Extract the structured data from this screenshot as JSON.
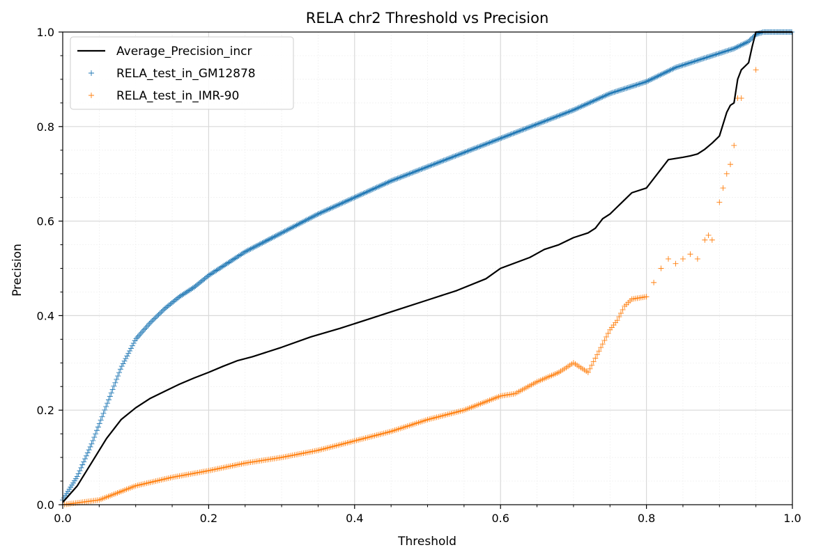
{
  "chart_data": {
    "type": "scatter",
    "title": "RELA chr2 Threshold vs Precision",
    "xlabel": "Threshold",
    "ylabel": "Precision",
    "xlim": [
      0,
      1
    ],
    "ylim": [
      0,
      1
    ],
    "x_ticks": [
      "0.0",
      "0.2",
      "0.4",
      "0.6",
      "0.8",
      "1.0"
    ],
    "y_ticks": [
      "0.0",
      "0.2",
      "0.4",
      "0.6",
      "0.8",
      "1.0"
    ],
    "grid": true,
    "minor_grid": true,
    "legend_position": "upper-left",
    "series": [
      {
        "name": "Average_Precision_incr",
        "kind": "line",
        "color": "#000000",
        "x": [
          0.0,
          0.02,
          0.04,
          0.06,
          0.08,
          0.1,
          0.12,
          0.14,
          0.16,
          0.18,
          0.2,
          0.22,
          0.24,
          0.26,
          0.3,
          0.34,
          0.38,
          0.42,
          0.46,
          0.5,
          0.54,
          0.58,
          0.6,
          0.64,
          0.66,
          0.68,
          0.7,
          0.72,
          0.73,
          0.74,
          0.75,
          0.76,
          0.77,
          0.78,
          0.8,
          0.81,
          0.82,
          0.825,
          0.83,
          0.85,
          0.86,
          0.87,
          0.88,
          0.89,
          0.9,
          0.91,
          0.915,
          0.92,
          0.925,
          0.93,
          0.94,
          0.945,
          0.95,
          0.96,
          1.0
        ],
        "values": [
          0.005,
          0.04,
          0.09,
          0.14,
          0.18,
          0.205,
          0.225,
          0.24,
          0.255,
          0.268,
          0.28,
          0.293,
          0.305,
          0.313,
          0.333,
          0.355,
          0.373,
          0.393,
          0.413,
          0.433,
          0.453,
          0.478,
          0.5,
          0.523,
          0.54,
          0.55,
          0.565,
          0.575,
          0.585,
          0.605,
          0.615,
          0.63,
          0.645,
          0.66,
          0.67,
          0.69,
          0.71,
          0.72,
          0.73,
          0.735,
          0.738,
          0.742,
          0.752,
          0.765,
          0.78,
          0.83,
          0.845,
          0.85,
          0.9,
          0.92,
          0.935,
          0.97,
          1.0,
          1.0,
          1.0
        ]
      },
      {
        "name": "RELA_test_in_GM12878",
        "kind": "scatter",
        "marker": "+",
        "color": "#1f77b4",
        "x": [
          0.0,
          0.02,
          0.04,
          0.06,
          0.08,
          0.1,
          0.12,
          0.14,
          0.16,
          0.18,
          0.2,
          0.25,
          0.3,
          0.35,
          0.4,
          0.45,
          0.5,
          0.55,
          0.6,
          0.65,
          0.7,
          0.75,
          0.8,
          0.82,
          0.84,
          0.86,
          0.88,
          0.9,
          0.92,
          0.94,
          0.95,
          0.96,
          1.0
        ],
        "values": [
          0.01,
          0.06,
          0.13,
          0.21,
          0.29,
          0.35,
          0.385,
          0.415,
          0.44,
          0.46,
          0.485,
          0.535,
          0.575,
          0.615,
          0.65,
          0.685,
          0.715,
          0.745,
          0.775,
          0.805,
          0.835,
          0.87,
          0.895,
          0.91,
          0.925,
          0.935,
          0.945,
          0.955,
          0.965,
          0.98,
          0.995,
          1.0,
          1.0
        ]
      },
      {
        "name": "RELA_test_in_IMR-90",
        "kind": "scatter",
        "marker": "+",
        "color": "#ff7f0e",
        "x": [
          0.0,
          0.05,
          0.1,
          0.15,
          0.2,
          0.25,
          0.3,
          0.35,
          0.4,
          0.45,
          0.5,
          0.55,
          0.6,
          0.62,
          0.65,
          0.68,
          0.7,
          0.72,
          0.73,
          0.74,
          0.75,
          0.76,
          0.77,
          0.78,
          0.8,
          0.81,
          0.82,
          0.83,
          0.84,
          0.85,
          0.86,
          0.87,
          0.88,
          0.885,
          0.89,
          0.9,
          0.905,
          0.91,
          0.915,
          0.92,
          0.925,
          0.93,
          0.95
        ],
        "values": [
          0.0,
          0.01,
          0.04,
          0.058,
          0.072,
          0.088,
          0.1,
          0.115,
          0.135,
          0.155,
          0.18,
          0.2,
          0.23,
          0.235,
          0.26,
          0.28,
          0.3,
          0.28,
          0.31,
          0.34,
          0.37,
          0.39,
          0.42,
          0.435,
          0.44,
          0.47,
          0.5,
          0.52,
          0.51,
          0.52,
          0.53,
          0.52,
          0.56,
          0.57,
          0.56,
          0.64,
          0.67,
          0.7,
          0.72,
          0.76,
          0.86,
          0.86,
          0.92
        ]
      }
    ]
  }
}
